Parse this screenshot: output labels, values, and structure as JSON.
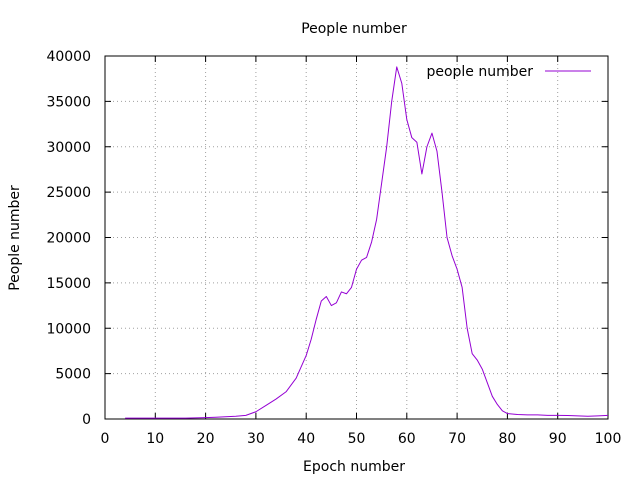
{
  "chart_data": {
    "type": "line",
    "title": "People number",
    "xlabel": "Epoch number",
    "ylabel": "People number",
    "xlim": [
      0,
      100
    ],
    "ylim": [
      0,
      40000
    ],
    "grid": true,
    "legend_position": "top-right",
    "xticks": [
      "0",
      "10",
      "20",
      "30",
      "40",
      "50",
      "60",
      "70",
      "80",
      "90",
      "100"
    ],
    "yticks": [
      "0",
      "5000",
      "10000",
      "15000",
      "20000",
      "25000",
      "30000",
      "35000",
      "40000"
    ],
    "series": [
      {
        "name": "people number",
        "color": "#9400d3",
        "x": [
          4,
          6,
          8,
          10,
          12,
          14,
          16,
          18,
          20,
          22,
          24,
          26,
          28,
          30,
          32,
          34,
          36,
          38,
          40,
          41,
          42,
          43,
          44,
          45,
          46,
          47,
          48,
          49,
          50,
          51,
          52,
          53,
          54,
          55,
          56,
          57,
          58,
          59,
          60,
          61,
          62,
          63,
          64,
          65,
          66,
          67,
          68,
          69,
          70,
          71,
          72,
          73,
          74,
          75,
          76,
          77,
          78,
          79,
          80,
          82,
          84,
          86,
          88,
          90,
          92,
          94,
          96,
          98,
          100
        ],
        "values": [
          100,
          100,
          100,
          100,
          100,
          100,
          100,
          120,
          150,
          200,
          250,
          300,
          400,
          800,
          1500,
          2200,
          3000,
          4500,
          7000,
          8800,
          11000,
          13000,
          13500,
          12500,
          12800,
          14000,
          13800,
          14500,
          16500,
          17500,
          17800,
          19500,
          22000,
          26000,
          30000,
          35000,
          38800,
          37000,
          33000,
          31000,
          30500,
          27000,
          30000,
          31500,
          29500,
          25000,
          20000,
          18000,
          16500,
          14500,
          10000,
          7200,
          6500,
          5500,
          4000,
          2500,
          1600,
          900,
          600,
          500,
          450,
          450,
          400,
          400,
          380,
          350,
          300,
          350,
          400
        ]
      }
    ]
  }
}
